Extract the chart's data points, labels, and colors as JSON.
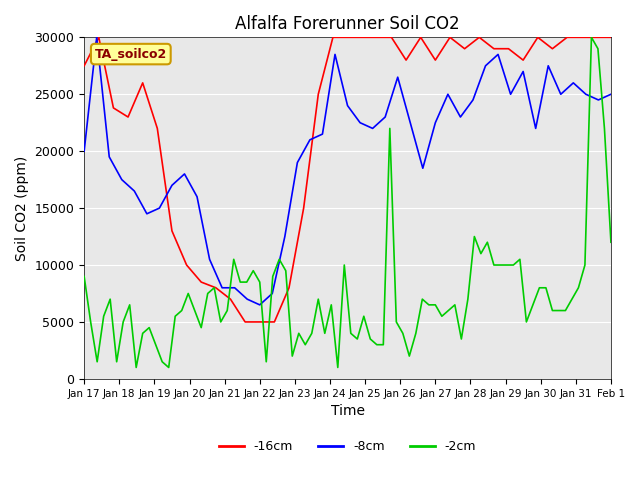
{
  "title": "Alfalfa Forerunner Soil CO2",
  "xlabel": "Time",
  "ylabel": "Soil CO2 (ppm)",
  "ylim": [
    0,
    30000
  ],
  "yticks": [
    0,
    5000,
    10000,
    15000,
    20000,
    25000,
    30000
  ],
  "bg_color": "#e8e8e8",
  "legend_label": "TA_soilco2",
  "legend_bg": "#ffff99",
  "legend_border": "#cc9900",
  "line_colors": {
    "red": "#ff0000",
    "blue": "#0000ff",
    "green": "#00cc00"
  },
  "series_labels": [
    "-16cm",
    "-8cm",
    "-2cm"
  ],
  "x_tick_labels": [
    "Jan 17",
    "Jan 18",
    "Jan 19",
    "Jan 20",
    "Jan 21",
    "Jan 22",
    "Jan 23",
    "Jan 24",
    "Jan 25",
    "Jan 26",
    "Jan 27",
    "Jan 28",
    "Jan 29",
    "Jan 30",
    "Jan 31",
    "Feb 1"
  ],
  "n_days": 15,
  "red_series": [
    27500,
    30000,
    23800,
    23000,
    26000,
    22000,
    13000,
    10000,
    8500,
    8000,
    7000,
    5000,
    5000,
    5000,
    8000,
    15000,
    25000,
    30000,
    30000,
    30000,
    30000,
    30000,
    28000,
    30000,
    28000,
    30000,
    29000,
    30000,
    29000,
    29000,
    28000,
    30000,
    29000,
    30000,
    30000,
    30000,
    30000
  ],
  "blue_series": [
    20000,
    30000,
    19500,
    17500,
    16500,
    14500,
    15000,
    17000,
    18000,
    16000,
    10500,
    8000,
    8000,
    7000,
    6500,
    7500,
    12500,
    19000,
    21000,
    21500,
    28500,
    24000,
    22500,
    22000,
    23000,
    26500,
    22500,
    18500,
    22500,
    25000,
    23000,
    24500,
    27500,
    28500,
    25000,
    27000,
    22000,
    27500,
    25000,
    26000,
    25000,
    24500,
    25000
  ],
  "green_series": [
    9000,
    5000,
    1500,
    5500,
    7000,
    1500,
    5000,
    6500,
    1000,
    4000,
    4500,
    3000,
    1500,
    1000,
    5500,
    6000,
    7500,
    6000,
    4500,
    7500,
    8000,
    5000,
    6000,
    10500,
    8500,
    8500,
    9500,
    8500,
    1500,
    9000,
    10500,
    9500,
    2000,
    4000,
    3000,
    4000,
    7000,
    4000,
    6500,
    1000,
    10000,
    4000,
    3500,
    5500,
    3500,
    3000,
    3000,
    22000,
    5000,
    4000,
    2000,
    4000,
    7000,
    6500,
    6500,
    5500,
    6000,
    6500,
    3500,
    7000,
    12500,
    11000,
    12000,
    10000,
    10000,
    10000,
    10000,
    10500,
    5000,
    6500,
    8000,
    8000,
    6000,
    6000,
    6000,
    7000,
    8000,
    10000,
    30000,
    29000,
    22000,
    12000
  ]
}
